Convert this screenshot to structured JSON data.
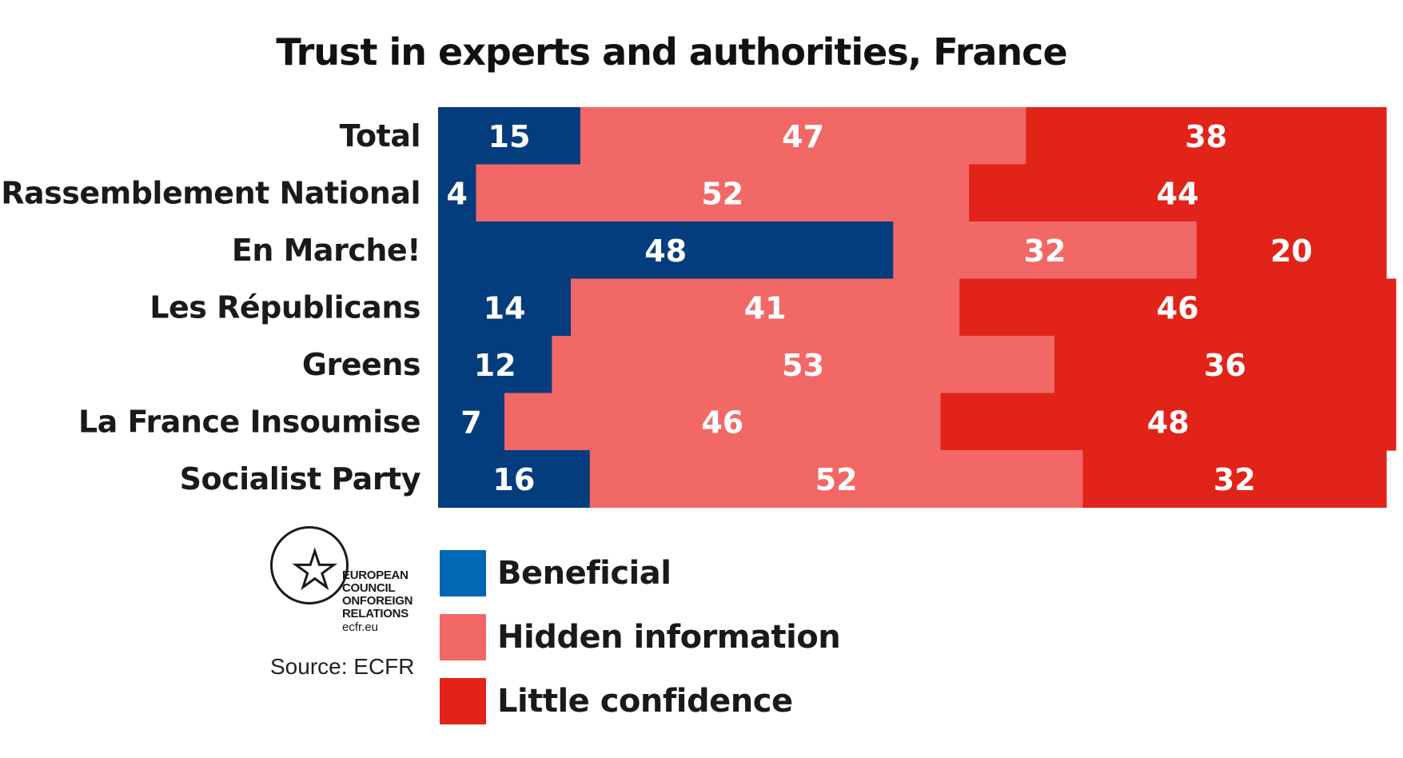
{
  "chart_data": {
    "type": "bar",
    "orientation": "horizontal",
    "stacked": true,
    "title": "Trust in experts and authorities, France",
    "categories": [
      "Total",
      "Rassemblement National",
      "En Marche!",
      "Les Républicans",
      "Greens",
      "La France Insoumise",
      "Socialist Party"
    ],
    "series": [
      {
        "name": "Beneficial",
        "color": "#043d7e",
        "values": [
          15,
          4,
          48,
          14,
          12,
          7,
          16
        ]
      },
      {
        "name": "Hidden information",
        "color": "#f26866",
        "values": [
          47,
          52,
          32,
          41,
          53,
          46,
          52
        ]
      },
      {
        "name": "Little confidence",
        "color": "#e2231a",
        "values": [
          38,
          44,
          20,
          46,
          36,
          48,
          32
        ]
      }
    ],
    "legend": "bottom-left",
    "legend_colors": [
      "#0068b4",
      "#f26866",
      "#e2231a"
    ],
    "grid": false
  },
  "logo": {
    "icon": "star-in-circle-icon",
    "text": "EUROPEAN\nCOUNCIL\nONFOREIGN\nRELATIONS",
    "url": "ecfr.eu"
  },
  "source": "Source: ECFR"
}
